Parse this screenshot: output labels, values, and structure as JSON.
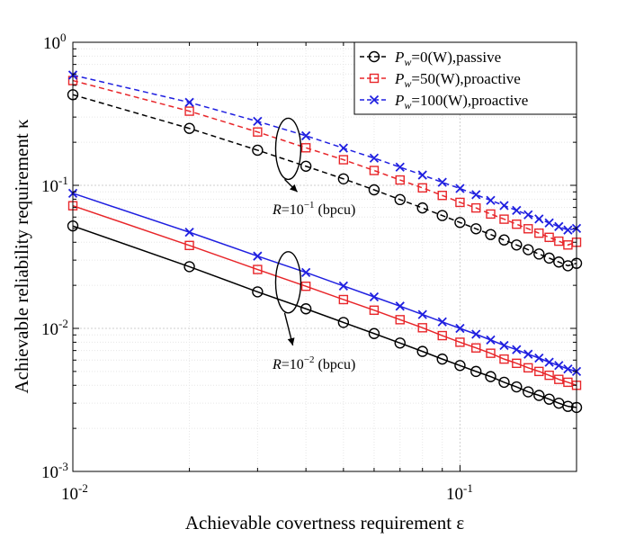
{
  "chart_data": {
    "type": "line",
    "x_scale": "log",
    "y_scale": "log",
    "xlim": [
      0.01,
      0.2
    ],
    "ylim": [
      0.001,
      1
    ],
    "grid": true,
    "xlabel": "Achievable covertness requirement ε",
    "ylabel": "Achievable reliability requirement κ",
    "x_ticks": [
      {
        "value": 0.01,
        "base": "10",
        "exp": "-2"
      },
      {
        "value": 0.1,
        "base": "10",
        "exp": "-1"
      }
    ],
    "y_ticks": [
      {
        "value": 1,
        "base": "10",
        "exp": "0"
      },
      {
        "value": 0.1,
        "base": "10",
        "exp": "-1"
      },
      {
        "value": 0.01,
        "base": "10",
        "exp": "-2"
      },
      {
        "value": 0.001,
        "base": "10",
        "exp": "-3"
      }
    ],
    "x": [
      0.01,
      0.02,
      0.03,
      0.04,
      0.05,
      0.06,
      0.07,
      0.08,
      0.09,
      0.1,
      0.11,
      0.12,
      0.13,
      0.14,
      0.15,
      0.16,
      0.17,
      0.18,
      0.19,
      0.2
    ],
    "series": [
      {
        "name": "P_w=0(W),passive",
        "group": "R=10^-1",
        "color": "#000000",
        "marker": "circle",
        "dashed": true,
        "values": [
          0.43,
          0.25,
          0.176,
          0.136,
          0.111,
          0.093,
          0.0795,
          0.0695,
          0.0615,
          0.055,
          0.0497,
          0.0453,
          0.0415,
          0.0383,
          0.0355,
          0.0331,
          0.031,
          0.0291,
          0.0274,
          0.0285
        ]
      },
      {
        "name": "P_w=50(W),proactive",
        "group": "R=10^-1",
        "color": "#e8262a",
        "marker": "square",
        "dashed": true,
        "values": [
          0.54,
          0.33,
          0.236,
          0.183,
          0.151,
          0.127,
          0.109,
          0.096,
          0.085,
          0.076,
          0.0695,
          0.063,
          0.058,
          0.0535,
          0.0497,
          0.0463,
          0.0433,
          0.0407,
          0.0383,
          0.04
        ]
      },
      {
        "name": "P_w=100(W),proactive",
        "group": "R=10^-1",
        "color": "#1f1fe0",
        "marker": "x",
        "dashed": true,
        "values": [
          0.59,
          0.38,
          0.28,
          0.222,
          0.182,
          0.155,
          0.134,
          0.118,
          0.105,
          0.095,
          0.086,
          0.0785,
          0.0722,
          0.0668,
          0.0622,
          0.0582,
          0.0546,
          0.0515,
          0.0487,
          0.05
        ]
      },
      {
        "name": "P_w=0(W),passive",
        "group": "R=10^-2",
        "color": "#000000",
        "marker": "circle",
        "dashed": false,
        "values": [
          0.052,
          0.027,
          0.018,
          0.0137,
          0.011,
          0.0092,
          0.0079,
          0.0069,
          0.0061,
          0.0055,
          0.005,
          0.0046,
          0.0042,
          0.0039,
          0.0036,
          0.0034,
          0.0032,
          0.003,
          0.00285,
          0.0028
        ]
      },
      {
        "name": "P_w=50(W),proactive",
        "group": "R=10^-2",
        "color": "#e8262a",
        "marker": "square",
        "dashed": false,
        "values": [
          0.072,
          0.038,
          0.0258,
          0.0197,
          0.0159,
          0.0134,
          0.0115,
          0.0101,
          0.0089,
          0.008,
          0.0073,
          0.0067,
          0.0061,
          0.0057,
          0.0053,
          0.005,
          0.0047,
          0.0044,
          0.0042,
          0.004
        ]
      },
      {
        "name": "P_w=100(W),proactive",
        "group": "R=10^-2",
        "color": "#1f1fe0",
        "marker": "x",
        "dashed": false,
        "values": [
          0.088,
          0.047,
          0.032,
          0.0246,
          0.0198,
          0.0166,
          0.0143,
          0.0125,
          0.0111,
          0.01,
          0.0091,
          0.0083,
          0.0076,
          0.0071,
          0.0066,
          0.0062,
          0.0058,
          0.0055,
          0.0052,
          0.005
        ]
      }
    ],
    "legend": {
      "placement": "top-right",
      "entries": [
        {
          "symbol": "P",
          "sub": "w",
          "text": "=0(W),passive",
          "color": "#000000",
          "marker": "circle"
        },
        {
          "symbol": "P",
          "sub": "w",
          "text": "=50(W),proactive",
          "color": "#e8262a",
          "marker": "square"
        },
        {
          "symbol": "P",
          "sub": "w",
          "text": "=100(W),proactive",
          "color": "#1f1fe0",
          "marker": "x"
        }
      ]
    },
    "annotations": [
      {
        "prefix": "R",
        "eq": "=10",
        "exp": "−1",
        "suffix": " (bpcu)",
        "ellipse_x": 0.036,
        "ellipse_y": 0.18,
        "arrow_x": 0.038,
        "arrow_y": 0.09
      },
      {
        "prefix": "R",
        "eq": "=10",
        "exp": "−2",
        "suffix": " (bpcu)",
        "ellipse_x": 0.036,
        "ellipse_y": 0.021,
        "arrow_x": 0.037,
        "arrow_y": 0.0076
      }
    ]
  }
}
